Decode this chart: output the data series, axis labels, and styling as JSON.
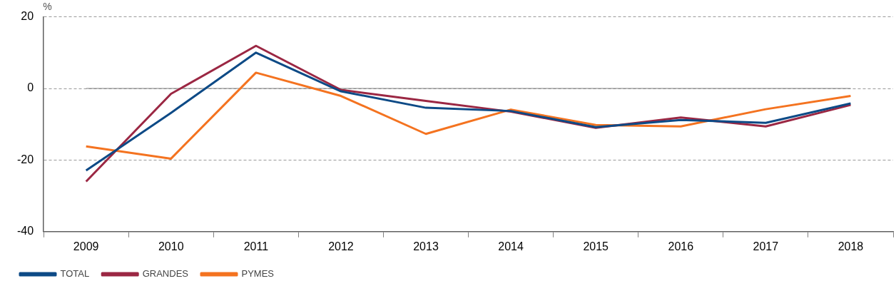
{
  "chart_data": {
    "type": "line",
    "ylabel": "%",
    "categories": [
      "2009",
      "2010",
      "2011",
      "2012",
      "2013",
      "2014",
      "2015",
      "2016",
      "2017",
      "2018"
    ],
    "series": [
      {
        "name": "TOTAL",
        "color": "#0d4a86",
        "values": [
          -22.9,
          -6.8,
          10,
          -0.8,
          -5.4,
          -6.3,
          -10.8,
          -8.8,
          -9.6,
          -4.2
        ]
      },
      {
        "name": "GRANDES",
        "color": "#9b2743",
        "values": [
          -26,
          -1.5,
          11.9,
          -0.4,
          -3.5,
          -6.5,
          -11,
          -8.1,
          -10.6,
          -4.6
        ]
      },
      {
        "name": "PYMES",
        "color": "#f47320",
        "values": [
          -16.2,
          -19.6,
          4.4,
          -2.1,
          -12.7,
          -5.9,
          -10.2,
          -10.6,
          -5.8,
          -2.1
        ]
      }
    ],
    "ylim": [
      -40,
      20
    ],
    "yticks": [
      -40,
      -20,
      0,
      20
    ],
    "grid": "y",
    "legend": "bottom left",
    "marker": "none",
    "line_style": "solid",
    "ref_lines": [
      {
        "axis": "y",
        "value": 0,
        "color": "#808080"
      }
    ]
  }
}
